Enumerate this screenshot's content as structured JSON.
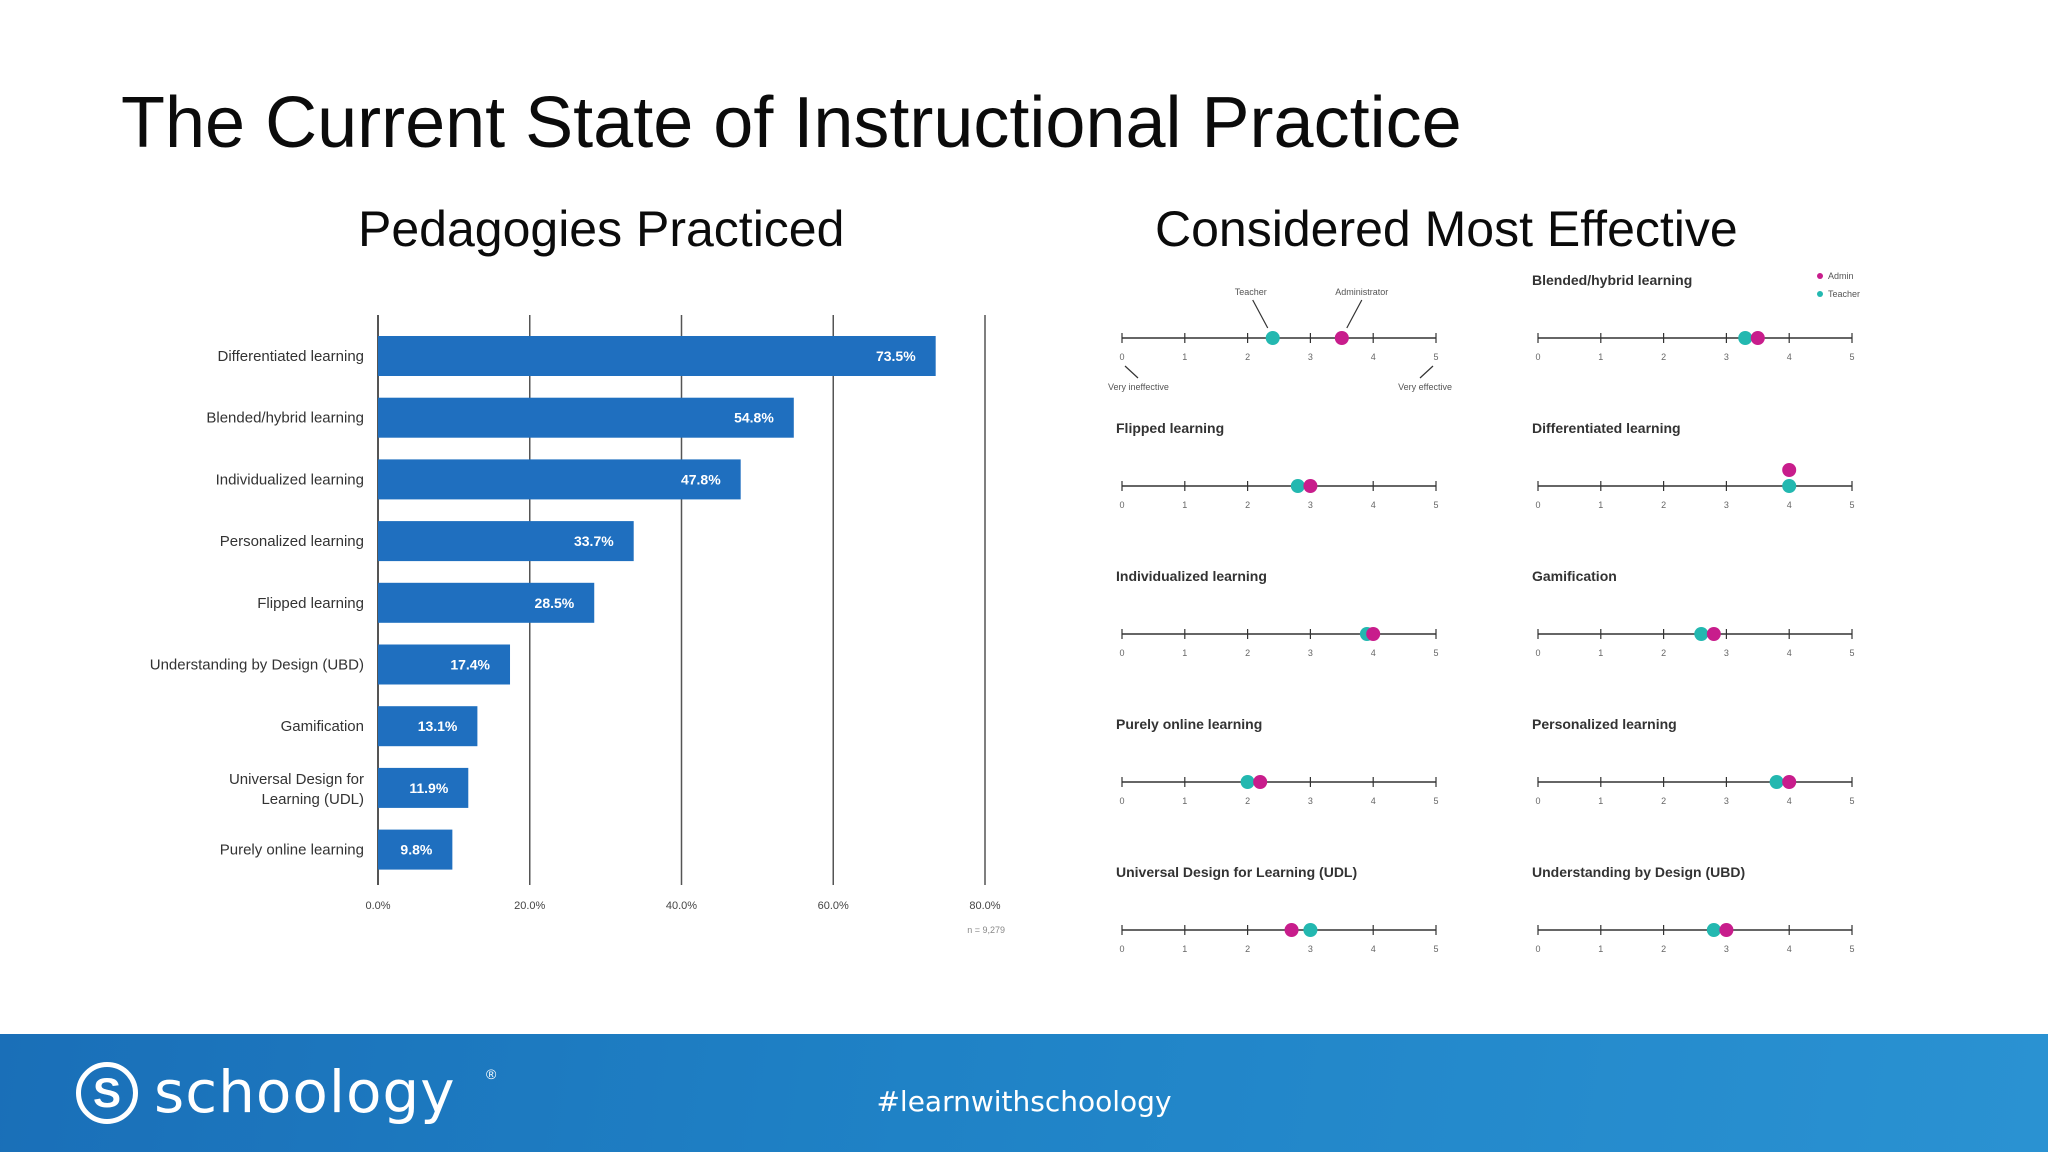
{
  "slide": {
    "title": "The Current State of Instructional Practice",
    "left_heading": "Pedagogies Practiced",
    "right_heading": "Considered Most Effective"
  },
  "footer": {
    "brand": "schoology",
    "registered_mark": "®",
    "logo_letter": "S",
    "hashtag": "#learnwithschoology"
  },
  "colors": {
    "bar": "#1f6fbf",
    "teacher": "#23b8b0",
    "admin": "#c81d8c",
    "footer": "#1f82c6"
  },
  "chart_data": [
    {
      "type": "bar",
      "orientation": "horizontal",
      "title": "Pedagogies Practiced",
      "categories": [
        "Differentiated learning",
        "Blended/hybrid learning",
        "Individualized learning",
        "Personalized learning",
        "Flipped learning",
        "Understanding by Design (UBD)",
        "Gamification",
        "Universal Design for Learning (UDL)",
        "Purely online learning"
      ],
      "values": [
        73.5,
        54.8,
        47.8,
        33.7,
        28.5,
        17.4,
        13.1,
        11.9,
        9.8
      ],
      "value_labels": [
        "73.5%",
        "54.8%",
        "47.8%",
        "33.7%",
        "28.5%",
        "17.4%",
        "13.1%",
        "11.9%",
        "9.8%"
      ],
      "xlim": [
        0,
        80
      ],
      "ticks": [
        "0.0%",
        "20.0%",
        "40.0%",
        "60.0%",
        "80.0%"
      ],
      "note": "n = 9,279",
      "grid": true
    },
    {
      "type": "scatter",
      "title": "Considered Most Effective",
      "scale_min": 0,
      "scale_max": 5,
      "tick_labels": [
        "0",
        "1",
        "2",
        "3",
        "4",
        "5"
      ],
      "legend": {
        "position": "top-right",
        "entries": [
          "Admin",
          "Teacher"
        ]
      },
      "annotations": {
        "teacher": "Teacher",
        "administrator": "Administrator",
        "low_end": "Very ineffective",
        "high_end": "Very effective"
      },
      "panels": [
        {
          "label": "",
          "teacher": 2.4,
          "admin": 3.5
        },
        {
          "label": "Blended/hybrid learning",
          "teacher": 3.3,
          "admin": 3.5
        },
        {
          "label": "Flipped learning",
          "teacher": 2.8,
          "admin": 3.0
        },
        {
          "label": "Differentiated learning",
          "teacher": 4.0,
          "admin": 4.0
        },
        {
          "label": "Individualized learning",
          "teacher": 3.9,
          "admin": 4.0
        },
        {
          "label": "Gamification",
          "teacher": 2.6,
          "admin": 2.8
        },
        {
          "label": "Purely online learning",
          "teacher": 2.0,
          "admin": 2.2
        },
        {
          "label": "Personalized learning",
          "teacher": 3.8,
          "admin": 4.0
        },
        {
          "label": "Universal Design for Learning (UDL)",
          "teacher": 3.0,
          "admin": 2.7
        },
        {
          "label": "Understanding by Design (UBD)",
          "teacher": 2.8,
          "admin": 3.0
        }
      ]
    }
  ]
}
